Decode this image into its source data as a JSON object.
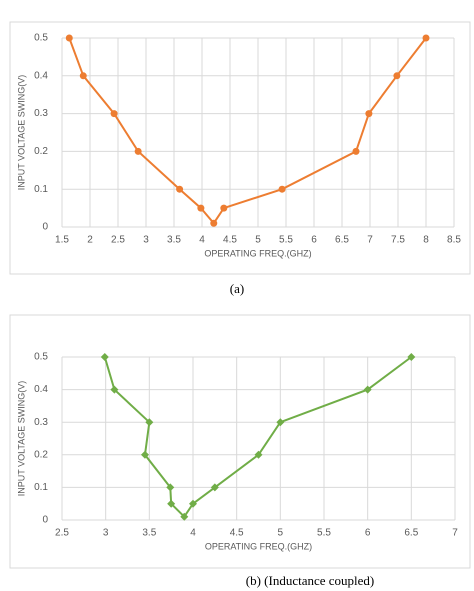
{
  "chart_data": [
    {
      "type": "line",
      "caption": "(a)",
      "xlabel": "OPERATING FREQ.(GHZ)",
      "ylabel": "INPUT VOLTAGE SWING(V)",
      "marker": "circle",
      "series": [
        {
          "color": "#ed7d31",
          "x": [
            1.63,
            1.88,
            2.43,
            2.86,
            3.6,
            3.98,
            4.21,
            4.39,
            5.43,
            6.75,
            6.98,
            7.48,
            8.0
          ],
          "values": [
            0.5,
            0.4,
            0.3,
            0.2,
            0.1,
            0.05,
            0.01,
            0.05,
            0.1,
            0.2,
            0.3,
            0.4,
            0.5
          ]
        }
      ],
      "xlim": [
        1.5,
        8.5
      ],
      "xticks": [
        1.5,
        2,
        2.5,
        3,
        3.5,
        4,
        4.5,
        5,
        5.5,
        6,
        6.5,
        7,
        7.5,
        8,
        8.5
      ],
      "ylim": [
        0,
        0.5
      ],
      "yticks": [
        0,
        0.1,
        0.2,
        0.3,
        0.4,
        0.5
      ],
      "grid": true
    },
    {
      "type": "line",
      "caption": "(b) (Inductance coupled)",
      "xlabel": "OPERATING FREQ.(GHZ)",
      "ylabel": "INPUT VOLTAGE SWING(V)",
      "marker": "diamond",
      "series": [
        {
          "color": "#70ad47",
          "x": [
            2.99,
            3.1,
            3.5,
            3.45,
            3.74,
            3.75,
            3.9,
            4.0,
            4.25,
            4.75,
            5.0,
            6.0,
            6.5
          ],
          "values": [
            0.5,
            0.4,
            0.3,
            0.2,
            0.1,
            0.05,
            0.01,
            0.05,
            0.1,
            0.2,
            0.3,
            0.4,
            0.5
          ]
        }
      ],
      "xlim": [
        2.5,
        7
      ],
      "xticks": [
        2.5,
        3,
        3.5,
        4,
        4.5,
        5,
        5.5,
        6,
        6.5,
        7
      ],
      "ylim": [
        0,
        0.5
      ],
      "yticks": [
        0,
        0.1,
        0.2,
        0.3,
        0.4,
        0.5
      ],
      "grid": true
    }
  ]
}
